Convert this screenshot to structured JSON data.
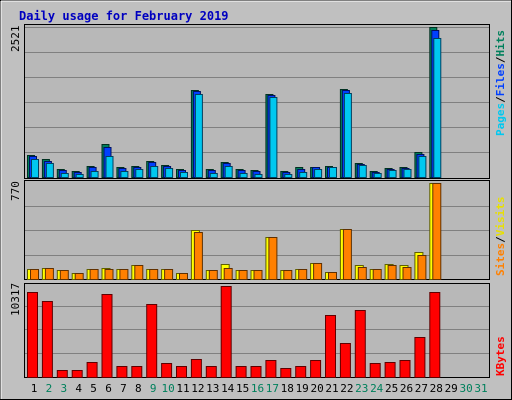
{
  "title": "Daily usage for February 2019",
  "colors": {
    "background": "#c0c0c0",
    "plot_background": "#b8b8b8",
    "title": "#0000c0",
    "hits": "#00805c",
    "files": "#0040ff",
    "pages": "#00c8f0",
    "visits": "#ffff00",
    "sites": "#ff8000",
    "kbytes": "#ff0000",
    "weekend_label": "#00805c",
    "weekday_label": "#000000"
  },
  "panels": {
    "top": {
      "max_label": "2521",
      "legend": [
        "Pages",
        "/",
        "Files",
        "/",
        "Hits"
      ]
    },
    "middle": {
      "max_label": "770",
      "legend": [
        "Sites",
        "/",
        "Visits"
      ]
    },
    "bottom": {
      "max_label": "10317",
      "legend": [
        "KBytes"
      ]
    }
  },
  "chart_data": {
    "type": "bar",
    "title": "Daily usage for February 2019",
    "categories": [
      "1",
      "2",
      "3",
      "4",
      "5",
      "6",
      "7",
      "8",
      "9",
      "10",
      "11",
      "12",
      "13",
      "14",
      "15",
      "16",
      "17",
      "18",
      "19",
      "20",
      "21",
      "22",
      "23",
      "24",
      "25",
      "26",
      "27",
      "28",
      "29",
      "30",
      "31"
    ],
    "weekend_days": [
      "2",
      "3",
      "9",
      "10",
      "16",
      "17",
      "23",
      "24",
      "30",
      "31"
    ],
    "panels": [
      {
        "name": "top",
        "ylim": [
          0,
          2521
        ],
        "series": [
          {
            "name": "Hits",
            "values": [
              370,
              300,
              140,
              100,
              190,
              560,
              170,
              190,
              270,
              200,
              140,
              1460,
              130,
              260,
              130,
              120,
              1400,
              100,
              160,
              170,
              180,
              1480,
              240,
              100,
              150,
              160,
              420,
              2521,
              0,
              0,
              0
            ]
          },
          {
            "name": "Files",
            "values": [
              350,
              270,
              110,
              80,
              170,
              500,
              150,
              160,
              250,
              180,
              120,
              1440,
              110,
              240,
              110,
              100,
              1380,
              80,
              140,
              160,
              170,
              1460,
              220,
              80,
              130,
              150,
              390,
              2470,
              0,
              0,
              0
            ]
          },
          {
            "name": "Pages",
            "values": [
              310,
              230,
              70,
              50,
              100,
              360,
              100,
              140,
              180,
              150,
              80,
              1400,
              70,
              180,
              70,
              50,
              1340,
              50,
              90,
              140,
              160,
              1420,
              200,
              60,
              120,
              140,
              360,
              2340,
              0,
              0,
              0
            ]
          }
        ]
      },
      {
        "name": "middle",
        "ylim": [
          0,
          770
        ],
        "series": [
          {
            "name": "Visits",
            "values": [
              80,
              90,
              70,
              50,
              80,
              90,
              80,
              110,
              80,
              80,
              50,
              390,
              70,
              120,
              70,
              70,
              340,
              70,
              80,
              130,
              60,
              400,
              110,
              80,
              120,
              110,
              220,
              770,
              0,
              0,
              0
            ]
          },
          {
            "name": "Sites",
            "values": [
              80,
              90,
              70,
              50,
              80,
              80,
              80,
              110,
              80,
              80,
              50,
              380,
              70,
              90,
              70,
              70,
              340,
              70,
              80,
              130,
              60,
              400,
              100,
              80,
              110,
              100,
              190,
              770,
              0,
              0,
              0
            ]
          }
        ]
      },
      {
        "name": "bottom",
        "ylim": [
          0,
          10317
        ],
        "series": [
          {
            "name": "KBytes",
            "values": [
              9600,
              8600,
              800,
              800,
              1700,
              9400,
              1300,
              1300,
              8300,
              1600,
              1300,
              2000,
              1300,
              10317,
              1200,
              1200,
              1900,
              1000,
              1300,
              1900,
              7000,
              3900,
              7600,
              1600,
              1700,
              1900,
              4500,
              9600,
              0,
              0,
              0
            ]
          }
        ]
      }
    ]
  }
}
